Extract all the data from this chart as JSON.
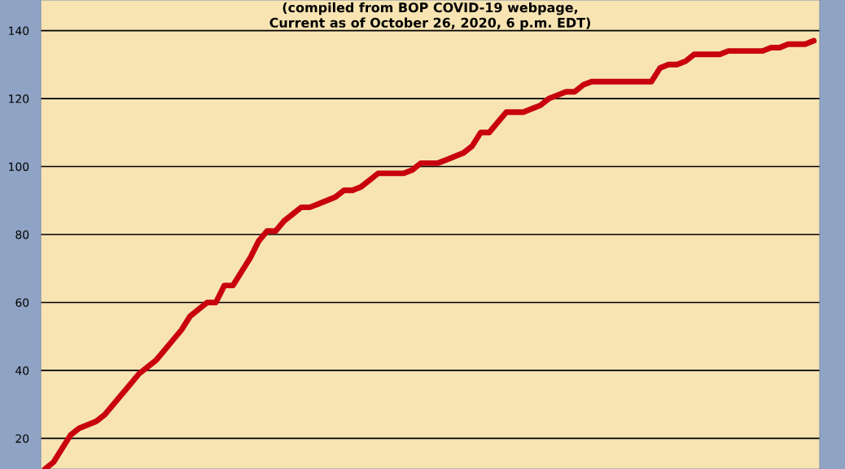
{
  "chart_data": {
    "type": "line",
    "title": "(compiled from BOP COVID-19 webpage,\nCurrent as of October 26, 2020, 6 p.m. EDT)",
    "categories": [
      null,
      null,
      null,
      null,
      null,
      null,
      null,
      null,
      null,
      null,
      null,
      null,
      null,
      null,
      null,
      null,
      null,
      null,
      null,
      null,
      null,
      null,
      null,
      null,
      null,
      null,
      null,
      null,
      null,
      null,
      null,
      null,
      null,
      null,
      null,
      null,
      null,
      null,
      null,
      null,
      null,
      null,
      null,
      null,
      null,
      null,
      null,
      null,
      null,
      null,
      null,
      null,
      null,
      null,
      null,
      null,
      null,
      null,
      null,
      null,
      null,
      null,
      null,
      null,
      null,
      null,
      null,
      null,
      null,
      null,
      null,
      null,
      null,
      null,
      null,
      null,
      null,
      null,
      null,
      null,
      null,
      null,
      null,
      null,
      null,
      null,
      null,
      null,
      null,
      null,
      null
    ],
    "series": [
      {
        "color": "#c8000f",
        "values": [
          11,
          13,
          17,
          21,
          23,
          24,
          25,
          27,
          30,
          33,
          36,
          39,
          41,
          43,
          46,
          49,
          52,
          56,
          58,
          60,
          60,
          65,
          65,
          69,
          73,
          78,
          81,
          81,
          84,
          86,
          88,
          88,
          89,
          90,
          91,
          93,
          93,
          94,
          96,
          98,
          98,
          98,
          98,
          99,
          101,
          101,
          101,
          102,
          103,
          104,
          106,
          110,
          110,
          113,
          116,
          116,
          116,
          117,
          118,
          120,
          121,
          122,
          122,
          124,
          125,
          125,
          125,
          125,
          125,
          125,
          125,
          125,
          129,
          130,
          130,
          131,
          133,
          133,
          133,
          133,
          134,
          134,
          134,
          134,
          134,
          135,
          135,
          136,
          136,
          136,
          137
        ]
      }
    ],
    "ylim": [
      11,
      149
    ],
    "yticks": [
      20,
      40,
      60,
      80,
      100,
      120,
      140
    ],
    "grid": "y",
    "marker": "none",
    "line_style": "solid"
  }
}
